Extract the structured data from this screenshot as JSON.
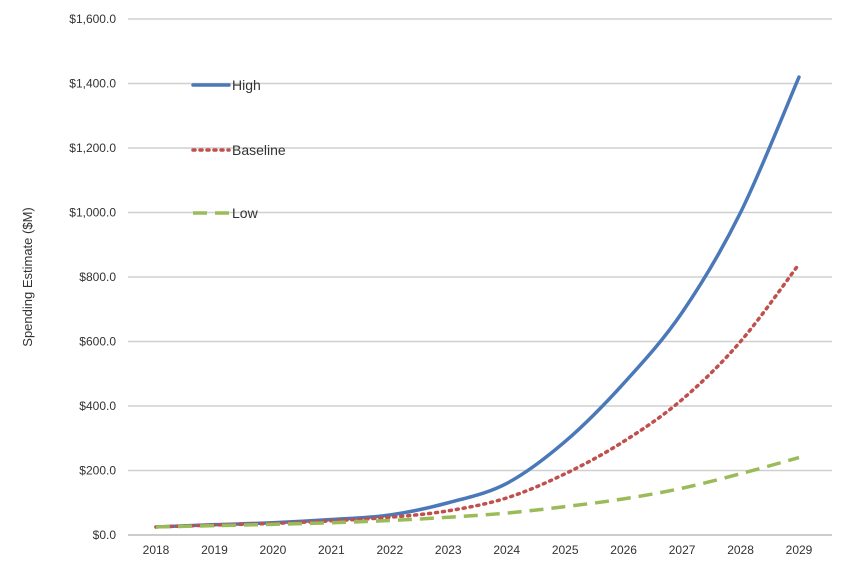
{
  "chart_data": {
    "type": "line",
    "title": "",
    "xlabel": "",
    "ylabel": "Spending Estimate ($M)",
    "ylim": [
      0,
      1600
    ],
    "yticks": [
      "$0.0",
      "$200.0",
      "$400.0",
      "$600.0",
      "$800.0",
      "$1,000.0",
      "$1,200.0",
      "$1,400.0",
      "$1,600.0"
    ],
    "ytick_values": [
      0,
      200,
      400,
      600,
      800,
      1000,
      1200,
      1400,
      1600
    ],
    "categories": [
      "2018",
      "2019",
      "2020",
      "2021",
      "2022",
      "2023",
      "2024",
      "2025",
      "2026",
      "2027",
      "2028",
      "2029"
    ],
    "grid": "horizontal",
    "legend_position": "top-left",
    "series": [
      {
        "name": "High",
        "color": "#4a78b8",
        "style": "solid",
        "values": [
          25,
          32,
          38,
          48,
          62,
          100,
          160,
          290,
          470,
          690,
          1000,
          1420
        ]
      },
      {
        "name": "Baseline",
        "color": "#c0504d",
        "style": "dotted",
        "values": [
          25,
          31,
          36,
          44,
          55,
          75,
          115,
          190,
          290,
          420,
          600,
          840
        ]
      },
      {
        "name": "Low",
        "color": "#9bbb59",
        "style": "dashed",
        "values": [
          25,
          29,
          33,
          38,
          45,
          55,
          68,
          88,
          112,
          145,
          190,
          240
        ]
      }
    ]
  }
}
